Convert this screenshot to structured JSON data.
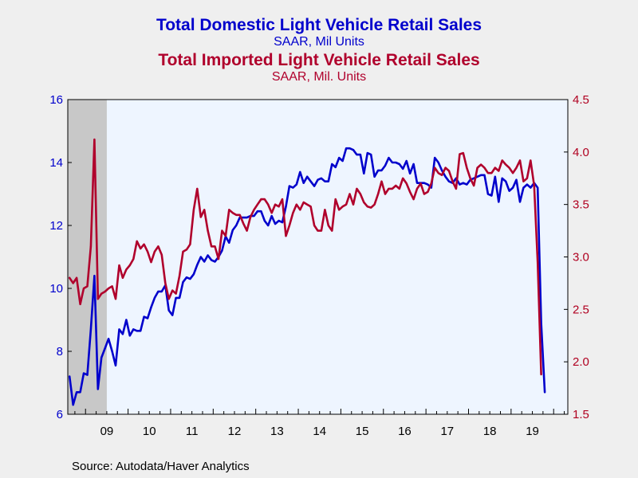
{
  "chart_data": {
    "type": "line",
    "title_1": "Total Domestic Light Vehicle Retail Sales",
    "subtitle_1": "SAAR, Mil Units",
    "title_2": "Total Imported Light Vehicle Retail Sales",
    "subtitle_2": "SAAR, Mil. Units",
    "source": "Source:  Autodata/Haver Analytics",
    "x_start": "2008-08",
    "x_end": "2020-04",
    "x_tick_labels": [
      "09",
      "10",
      "11",
      "12",
      "13",
      "14",
      "15",
      "16",
      "17",
      "18",
      "19"
    ],
    "recession_shade": [
      "2008-08",
      "2009-06"
    ],
    "left_axis": {
      "ylim": [
        6,
        16
      ],
      "ticks": [
        6,
        8,
        10,
        12,
        14,
        16
      ],
      "color": "#0000cc"
    },
    "right_axis": {
      "ylim": [
        1.5,
        4.5
      ],
      "ticks": [
        "1.5",
        "2.0",
        "2.5",
        "3.0",
        "3.5",
        "4.0",
        "4.5"
      ],
      "color": "#b00020"
    },
    "colors": {
      "domestic": "#0000cc",
      "imported": "#b0002c",
      "plot_bg": "#eef5ff",
      "outer_bg": "#efefef",
      "shade": "#c8c8c8"
    },
    "series": [
      {
        "name": "Total Domestic Light Vehicle Retail Sales",
        "axis": "left",
        "start": "2008-08",
        "values": [
          7.2,
          6.3,
          6.7,
          6.7,
          7.3,
          7.25,
          8.7,
          10.4,
          6.8,
          7.8,
          8.1,
          8.4,
          8.0,
          7.55,
          8.7,
          8.55,
          9.0,
          8.5,
          8.7,
          8.65,
          8.65,
          9.1,
          9.05,
          9.4,
          9.7,
          9.9,
          9.9,
          10.1,
          9.3,
          9.15,
          9.7,
          9.7,
          10.2,
          10.35,
          10.3,
          10.45,
          10.75,
          11.0,
          10.85,
          11.05,
          10.9,
          10.85,
          11.0,
          11.2,
          11.65,
          11.45,
          11.85,
          12.0,
          12.25,
          12.25,
          12.25,
          12.3,
          12.3,
          12.45,
          12.45,
          12.15,
          12.0,
          12.3,
          12.05,
          12.15,
          12.1,
          12.6,
          13.25,
          13.2,
          13.3,
          13.7,
          13.35,
          13.55,
          13.4,
          13.25,
          13.45,
          13.5,
          13.4,
          13.4,
          13.95,
          13.85,
          14.15,
          14.05,
          14.45,
          14.45,
          14.4,
          14.25,
          14.25,
          13.65,
          14.3,
          14.25,
          13.55,
          13.75,
          13.75,
          13.9,
          14.15,
          14.0,
          14.0,
          13.95,
          13.8,
          14.05,
          13.65,
          13.95,
          13.35,
          13.35,
          13.35,
          13.3,
          13.2,
          14.15,
          14.0,
          13.75,
          13.55,
          13.4,
          13.35,
          13.5,
          13.3,
          13.35,
          13.3,
          13.45,
          13.5,
          13.55,
          13.6,
          13.6,
          13.0,
          12.95,
          13.55,
          12.75,
          13.5,
          13.4,
          13.1,
          13.2,
          13.45,
          12.75,
          13.2,
          13.3,
          13.2,
          13.35,
          13.2,
          8.9,
          6.7
        ]
      },
      {
        "name": "Total Imported Light Vehicle Retail Sales",
        "axis": "right",
        "start": "2008-08",
        "values": [
          2.8,
          2.75,
          2.8,
          2.55,
          2.7,
          2.72,
          3.1,
          4.12,
          2.6,
          2.65,
          2.67,
          2.7,
          2.72,
          2.6,
          2.92,
          2.8,
          2.88,
          2.92,
          2.98,
          3.15,
          3.08,
          3.12,
          3.05,
          2.95,
          3.05,
          3.1,
          3.02,
          2.75,
          2.6,
          2.68,
          2.65,
          2.82,
          3.05,
          3.07,
          3.12,
          3.45,
          3.65,
          3.38,
          3.45,
          3.25,
          3.1,
          3.1,
          2.98,
          3.25,
          3.2,
          3.45,
          3.42,
          3.4,
          3.4,
          3.32,
          3.25,
          3.38,
          3.45,
          3.5,
          3.55,
          3.55,
          3.5,
          3.42,
          3.5,
          3.48,
          3.55,
          3.2,
          3.3,
          3.42,
          3.5,
          3.45,
          3.52,
          3.5,
          3.48,
          3.3,
          3.25,
          3.25,
          3.45,
          3.3,
          3.25,
          3.55,
          3.45,
          3.48,
          3.5,
          3.6,
          3.5,
          3.65,
          3.6,
          3.52,
          3.48,
          3.47,
          3.5,
          3.6,
          3.72,
          3.6,
          3.65,
          3.65,
          3.68,
          3.65,
          3.75,
          3.7,
          3.62,
          3.55,
          3.65,
          3.7,
          3.6,
          3.62,
          3.7,
          3.85,
          3.8,
          3.78,
          3.85,
          3.82,
          3.72,
          3.65,
          3.98,
          3.99,
          3.85,
          3.75,
          3.68,
          3.85,
          3.88,
          3.85,
          3.8,
          3.8,
          3.85,
          3.82,
          3.92,
          3.88,
          3.85,
          3.8,
          3.85,
          3.92,
          3.72,
          3.75,
          3.92,
          3.68,
          2.95,
          1.88
        ]
      }
    ]
  }
}
